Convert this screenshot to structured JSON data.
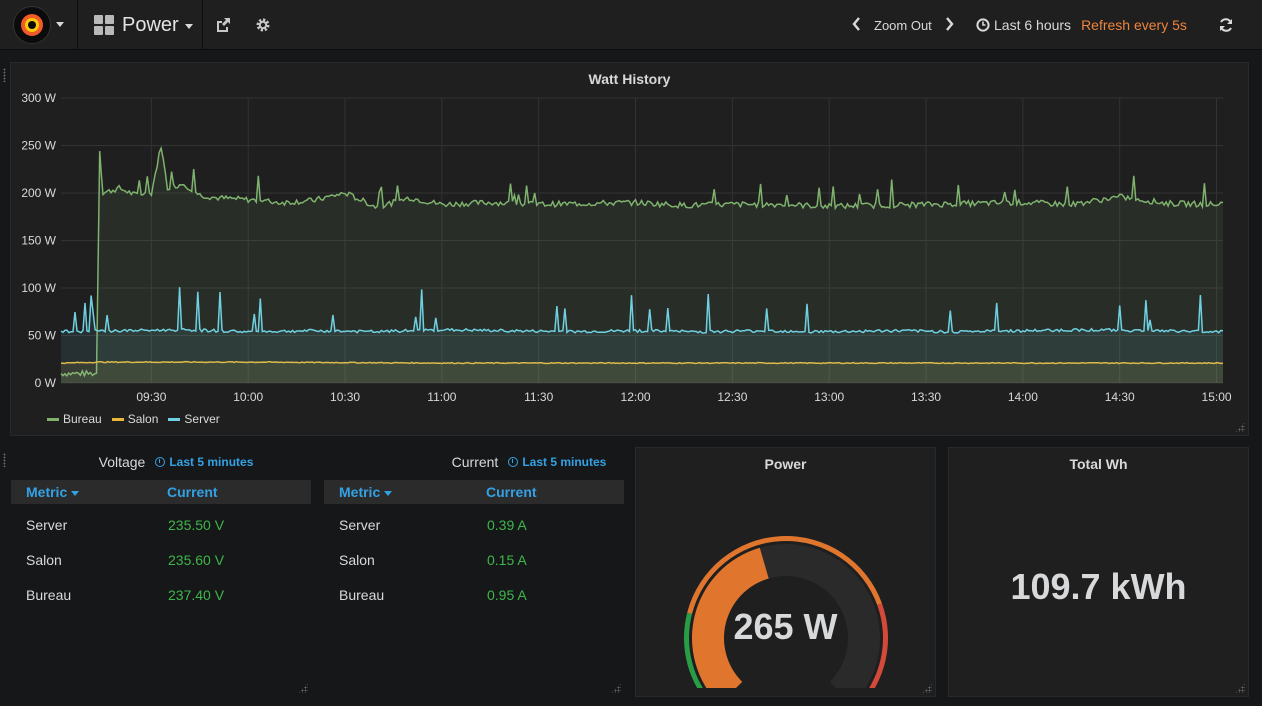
{
  "navbar": {
    "dashboard_title": "Power",
    "zoom_out_label": "Zoom Out",
    "time_range_label": "Last 6 hours",
    "refresh_label": "Refresh every 5s"
  },
  "colors": {
    "bureau": "#7eb26d",
    "salon": "#eab839",
    "server": "#6ed0e0",
    "link": "#33a2e5",
    "value_green": "#3fb64a",
    "refresh_orange": "#ef843c",
    "gauge_fill": "#e0752d",
    "gauge_red": "#d44a3a",
    "gauge_green": "#299c46"
  },
  "watt_history": {
    "title": "Watt History",
    "chart_data": {
      "type": "line",
      "y_unit": "W",
      "ylim": [
        0,
        300
      ],
      "y_ticks": [
        "0 W",
        "50 W",
        "100 W",
        "150 W",
        "200 W",
        "250 W",
        "300 W"
      ],
      "x_range": [
        "09:02",
        "15:02"
      ],
      "x_ticks": [
        "09:30",
        "10:00",
        "10:30",
        "11:00",
        "11:30",
        "12:00",
        "12:30",
        "13:00",
        "13:30",
        "14:00",
        "14:30",
        "15:00"
      ],
      "grid": true,
      "legend": "bottom-left",
      "series": [
        {
          "name": "Bureau",
          "color": "#7eb26d",
          "x": [
            "09:02",
            "09:08",
            "09:13",
            "09:14",
            "09:15",
            "09:20",
            "09:25",
            "09:30",
            "09:33",
            "09:35",
            "09:40",
            "09:45",
            "09:50",
            "10:00",
            "10:10",
            "10:20",
            "10:30",
            "10:40",
            "10:50",
            "11:00",
            "11:15",
            "11:30",
            "11:45",
            "12:00",
            "12:15",
            "12:30",
            "12:45",
            "13:00",
            "13:15",
            "13:30",
            "13:45",
            "14:00",
            "14:15",
            "14:30",
            "14:45",
            "15:00",
            "15:02"
          ],
          "values": [
            10,
            10,
            10,
            245,
            200,
            205,
            198,
            200,
            250,
            205,
            210,
            198,
            195,
            193,
            190,
            192,
            200,
            185,
            195,
            188,
            190,
            188,
            189,
            190,
            187,
            188,
            188,
            186,
            187,
            188,
            189,
            190,
            188,
            196,
            189,
            188,
            190
          ]
        },
        {
          "name": "Salon",
          "color": "#eab839",
          "x": [
            "09:02",
            "09:14",
            "10:00",
            "11:00",
            "12:00",
            "13:00",
            "14:00",
            "15:00",
            "15:02"
          ],
          "values": [
            21,
            22,
            22,
            21,
            21,
            21,
            21,
            21,
            21
          ]
        },
        {
          "name": "Server",
          "color": "#6ed0e0",
          "x": [
            "09:02",
            "09:20",
            "09:40",
            "10:00",
            "10:20",
            "10:40",
            "11:00",
            "11:20",
            "11:40",
            "12:00",
            "12:20",
            "12:40",
            "13:00",
            "13:20",
            "13:40",
            "14:00",
            "14:20",
            "14:40",
            "15:00",
            "15:02"
          ],
          "values": [
            54,
            55,
            56,
            54,
            55,
            54,
            56,
            55,
            54,
            55,
            54,
            55,
            54,
            55,
            54,
            55,
            56,
            55,
            54,
            55
          ]
        }
      ]
    }
  },
  "voltage": {
    "title": "Voltage",
    "time_note": "Last 5 minutes",
    "col_metric": "Metric",
    "col_current": "Current",
    "rows": [
      {
        "metric": "Server",
        "value": "235.50 V"
      },
      {
        "metric": "Salon",
        "value": "235.60 V"
      },
      {
        "metric": "Bureau",
        "value": "237.40 V"
      }
    ]
  },
  "current": {
    "title": "Current",
    "time_note": "Last 5 minutes",
    "col_metric": "Metric",
    "col_current": "Current",
    "rows": [
      {
        "metric": "Server",
        "value": "0.39 A"
      },
      {
        "metric": "Salon",
        "value": "0.15 A"
      },
      {
        "metric": "Bureau",
        "value": "0.95 A"
      }
    ]
  },
  "power": {
    "title": "Power",
    "value_text": "265 W",
    "value": 265,
    "gauge_fill_fraction": 0.44
  },
  "total": {
    "title": "Total Wh",
    "value_text": "109.7 kWh"
  }
}
